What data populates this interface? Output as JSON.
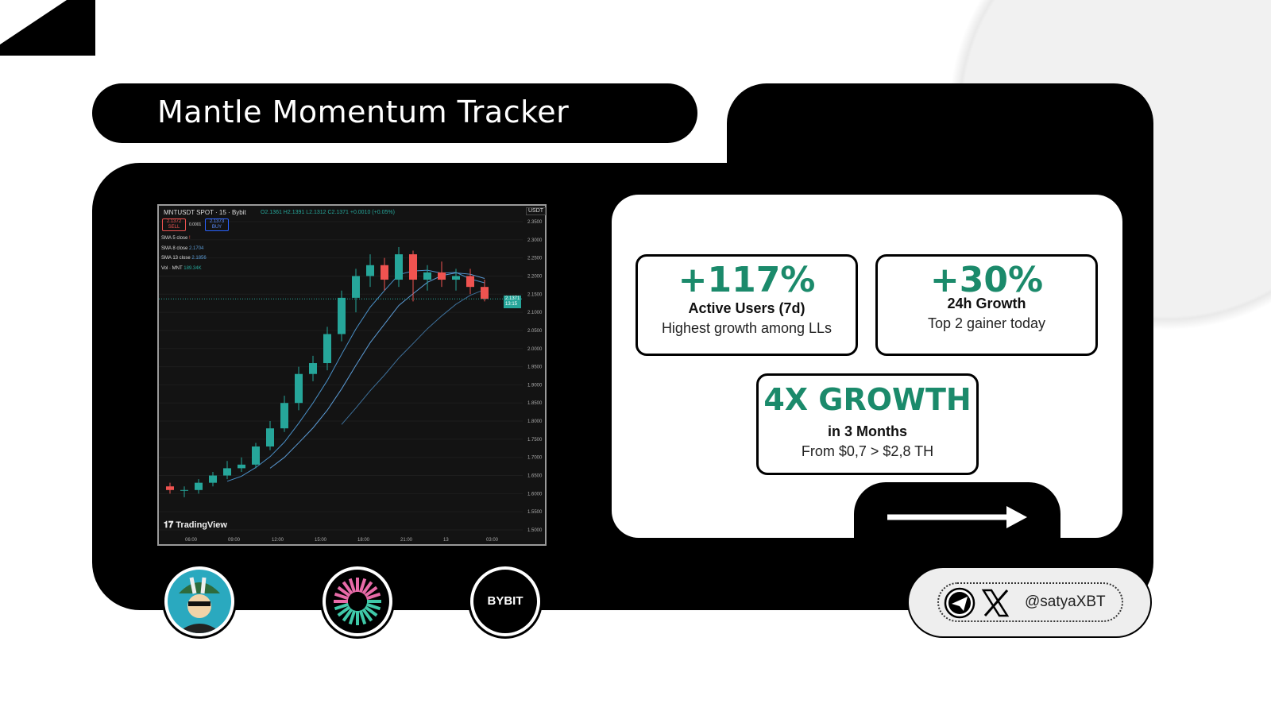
{
  "title": "Mantle Momentum Tracker",
  "chart": {
    "symbol": "MNTUSDT SPOT · 15 · Bybit",
    "ohlc": "O2.1361 H2.1391 L2.1312 C2.1371 +0.0010 (+0.05%)",
    "sell_price": "2.1372",
    "sell_label": "SELL",
    "spread": "0.0001",
    "buy_price": "2.1373",
    "buy_label": "BUY",
    "indicators": [
      {
        "name": "SMA 5 close",
        "value": ""
      },
      {
        "name": "SMA 8 close",
        "value": "2.1704"
      },
      {
        "name": "SMA 13 close",
        "value": "2.1856"
      },
      {
        "name": "Vol · MNT",
        "value": "189.34K"
      }
    ],
    "currency": "USDT",
    "last_price": "2.1371",
    "countdown": "13:15",
    "brand": "TradingView",
    "colors": {
      "up": "#26a69a",
      "down": "#ef5350",
      "sma": "#5b9bd5"
    }
  },
  "chart_data": {
    "type": "candlestick",
    "title": "MNTUSDT SPOT · 15 · Bybit",
    "ylim": [
      1.5,
      2.35
    ],
    "yticks": [
      "2.3500",
      "2.3000",
      "2.2500",
      "2.2000",
      "2.1500",
      "2.1000",
      "2.0500",
      "2.0000",
      "1.9500",
      "1.9000",
      "1.8500",
      "1.8000",
      "1.7500",
      "1.7000",
      "1.6500",
      "1.6000",
      "1.5500",
      "1.5000"
    ],
    "xticks": [
      "06:00",
      "09:00",
      "12:00",
      "15:00",
      "18:00",
      "21:00",
      "13",
      "03:00"
    ],
    "x": [
      "04:00",
      "05:00",
      "06:00",
      "07:00",
      "08:00",
      "09:00",
      "10:00",
      "11:00",
      "12:00",
      "13:00",
      "14:00",
      "15:00",
      "16:00",
      "17:00",
      "18:00",
      "19:00",
      "20:00",
      "21:00",
      "22:00",
      "23:00",
      "00:00",
      "01:00",
      "02:00"
    ],
    "ohlc": [
      [
        1.62,
        1.63,
        1.6,
        1.61
      ],
      [
        1.61,
        1.62,
        1.59,
        1.61
      ],
      [
        1.61,
        1.64,
        1.6,
        1.63
      ],
      [
        1.63,
        1.66,
        1.62,
        1.65
      ],
      [
        1.65,
        1.69,
        1.64,
        1.67
      ],
      [
        1.67,
        1.7,
        1.66,
        1.68
      ],
      [
        1.68,
        1.74,
        1.67,
        1.73
      ],
      [
        1.73,
        1.8,
        1.72,
        1.78
      ],
      [
        1.78,
        1.87,
        1.77,
        1.85
      ],
      [
        1.85,
        1.95,
        1.83,
        1.93
      ],
      [
        1.93,
        1.98,
        1.91,
        1.96
      ],
      [
        1.96,
        2.06,
        1.94,
        2.04
      ],
      [
        2.04,
        2.16,
        2.02,
        2.14
      ],
      [
        2.14,
        2.22,
        2.1,
        2.2
      ],
      [
        2.2,
        2.26,
        2.17,
        2.23
      ],
      [
        2.23,
        2.25,
        2.16,
        2.19
      ],
      [
        2.19,
        2.28,
        2.17,
        2.26
      ],
      [
        2.26,
        2.27,
        2.13,
        2.19
      ],
      [
        2.19,
        2.23,
        2.16,
        2.21
      ],
      [
        2.21,
        2.24,
        2.17,
        2.19
      ],
      [
        2.19,
        2.22,
        2.16,
        2.2
      ],
      [
        2.2,
        2.22,
        2.15,
        2.17
      ],
      [
        2.17,
        2.19,
        2.13,
        2.137
      ]
    ]
  },
  "stats": [
    {
      "value": "+117%",
      "label": "Active Users (7d)",
      "sub": "Highest growth among LLs"
    },
    {
      "value": "+30%",
      "label": "24h Growth",
      "sub": "Top 2 gainer today"
    },
    {
      "value": "4X GROWTH",
      "label": "in 3 Months",
      "sub": "From $0,7 > $2,8 TH"
    }
  ],
  "logos": {
    "bybit": "BYBIT"
  },
  "social": {
    "handle": "@satyaXBT"
  },
  "colors": {
    "accent": "#1b8a6b",
    "background": "#000000"
  }
}
